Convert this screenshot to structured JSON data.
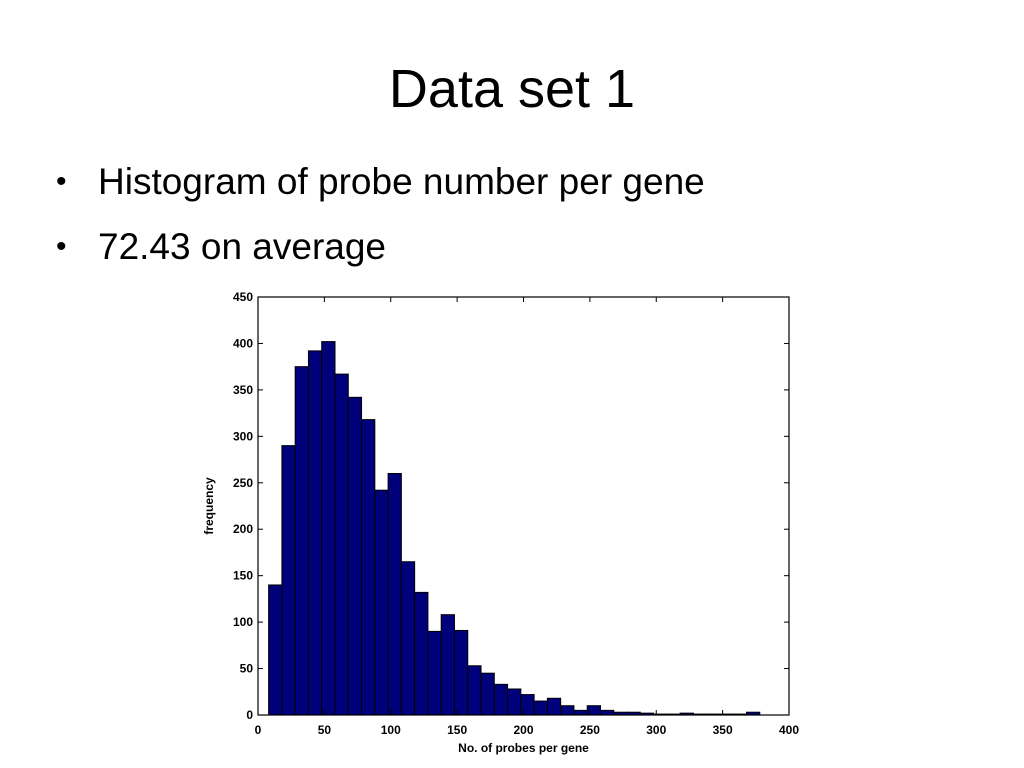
{
  "slide": {
    "title": "Data set 1",
    "bullets": [
      {
        "marker": "•",
        "text": "Histogram of probe number per gene"
      },
      {
        "marker": "•",
        "text": "72.43 on average"
      }
    ]
  },
  "chart_data": {
    "type": "bar",
    "xlabel": "No. of probes per gene",
    "ylabel": "frequency",
    "xlim": [
      0,
      400
    ],
    "ylim": [
      0,
      450
    ],
    "xticks": [
      0,
      50,
      100,
      150,
      200,
      250,
      300,
      350,
      400
    ],
    "yticks": [
      0,
      50,
      100,
      150,
      200,
      250,
      300,
      350,
      400,
      450
    ],
    "grid": false,
    "bar_color": "#00007a",
    "edge_color": "#000000",
    "bins": [
      {
        "from": 8,
        "to": 18,
        "value": 140
      },
      {
        "from": 18,
        "to": 28,
        "value": 290
      },
      {
        "from": 28,
        "to": 38,
        "value": 375
      },
      {
        "from": 38,
        "to": 48,
        "value": 392
      },
      {
        "from": 48,
        "to": 58,
        "value": 402
      },
      {
        "from": 58,
        "to": 68,
        "value": 367
      },
      {
        "from": 68,
        "to": 78,
        "value": 342
      },
      {
        "from": 78,
        "to": 88,
        "value": 318
      },
      {
        "from": 88,
        "to": 98,
        "value": 242
      },
      {
        "from": 98,
        "to": 108,
        "value": 260
      },
      {
        "from": 108,
        "to": 118,
        "value": 165
      },
      {
        "from": 118,
        "to": 128,
        "value": 132
      },
      {
        "from": 128,
        "to": 138,
        "value": 90
      },
      {
        "from": 138,
        "to": 148,
        "value": 108
      },
      {
        "from": 148,
        "to": 158,
        "value": 91
      },
      {
        "from": 158,
        "to": 168,
        "value": 53
      },
      {
        "from": 168,
        "to": 178,
        "value": 45
      },
      {
        "from": 178,
        "to": 188,
        "value": 33
      },
      {
        "from": 188,
        "to": 198,
        "value": 28
      },
      {
        "from": 198,
        "to": 208,
        "value": 22
      },
      {
        "from": 208,
        "to": 218,
        "value": 15
      },
      {
        "from": 218,
        "to": 228,
        "value": 18
      },
      {
        "from": 228,
        "to": 238,
        "value": 10
      },
      {
        "from": 238,
        "to": 248,
        "value": 5
      },
      {
        "from": 248,
        "to": 258,
        "value": 10
      },
      {
        "from": 258,
        "to": 268,
        "value": 5
      },
      {
        "from": 268,
        "to": 278,
        "value": 3
      },
      {
        "from": 278,
        "to": 288,
        "value": 3
      },
      {
        "from": 288,
        "to": 298,
        "value": 2
      },
      {
        "from": 298,
        "to": 308,
        "value": 1
      },
      {
        "from": 308,
        "to": 318,
        "value": 1
      },
      {
        "from": 318,
        "to": 328,
        "value": 2
      },
      {
        "from": 328,
        "to": 338,
        "value": 1
      },
      {
        "from": 338,
        "to": 348,
        "value": 1
      },
      {
        "from": 348,
        "to": 358,
        "value": 1
      },
      {
        "from": 358,
        "to": 368,
        "value": 1
      },
      {
        "from": 368,
        "to": 378,
        "value": 3
      }
    ]
  }
}
